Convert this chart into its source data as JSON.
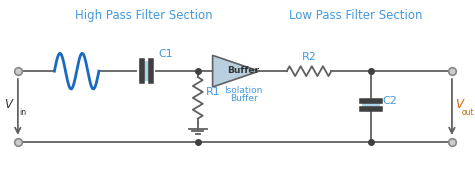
{
  "bg_color": "#ffffff",
  "wire_color": "#606060",
  "blue_color": "#1a6abf",
  "cyan_color": "#a8d8e8",
  "dark_color": "#303030",
  "plate_color": "#404040",
  "text_blue": "#4499dd",
  "title_hpf": "High Pass Filter Section",
  "title_lpf": "Low Pass Filter Section",
  "label_c1": "C1",
  "label_r1": "R1",
  "label_r2": "R2",
  "label_c2": "C2",
  "label_buffer": "Buffer",
  "label_isolation": "Isolation",
  "label_buffer2": "Buffer"
}
